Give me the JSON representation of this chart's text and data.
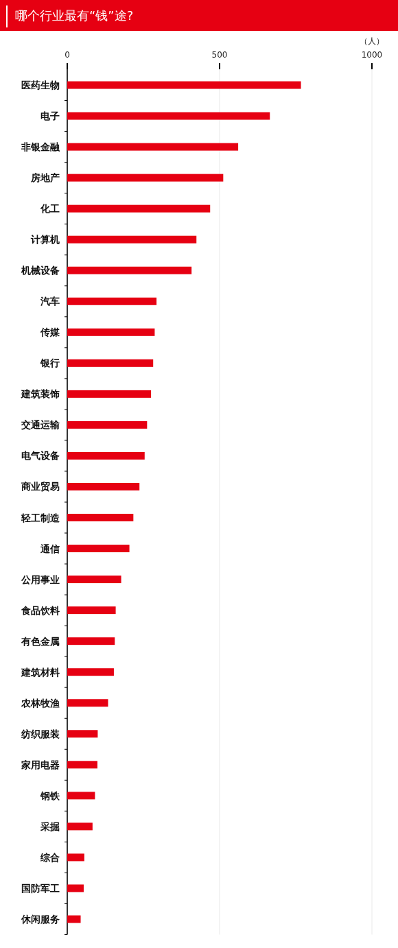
{
  "chart_data": {
    "type": "bar",
    "orientation": "horizontal",
    "title": "哪个行业最有“钱”途?",
    "xlabel": "（人）",
    "categories": [
      "医药生物",
      "电子",
      "非银金融",
      "房地产",
      "化工",
      "计算机",
      "机械设备",
      "汽车",
      "传媒",
      "银行",
      "建筑装饰",
      "交通运输",
      "电气设备",
      "商业贸易",
      "轻工制造",
      "通信",
      "公用事业",
      "食品饮料",
      "有色金属",
      "建筑材料",
      "农林牧渔",
      "纺织服装",
      "家用电器",
      "钢铁",
      "采掘",
      "综合",
      "国防军工",
      "休闲服务"
    ],
    "values": [
      767,
      665,
      561,
      512,
      469,
      424,
      408,
      293,
      287,
      282,
      275,
      262,
      254,
      237,
      217,
      204,
      177,
      159,
      156,
      153,
      134,
      100,
      99,
      91,
      83,
      56,
      54,
      44
    ],
    "color": "#e60012",
    "xlim": [
      0,
      1000
    ],
    "xticks": [
      0,
      500,
      1000
    ],
    "grid": "x"
  }
}
